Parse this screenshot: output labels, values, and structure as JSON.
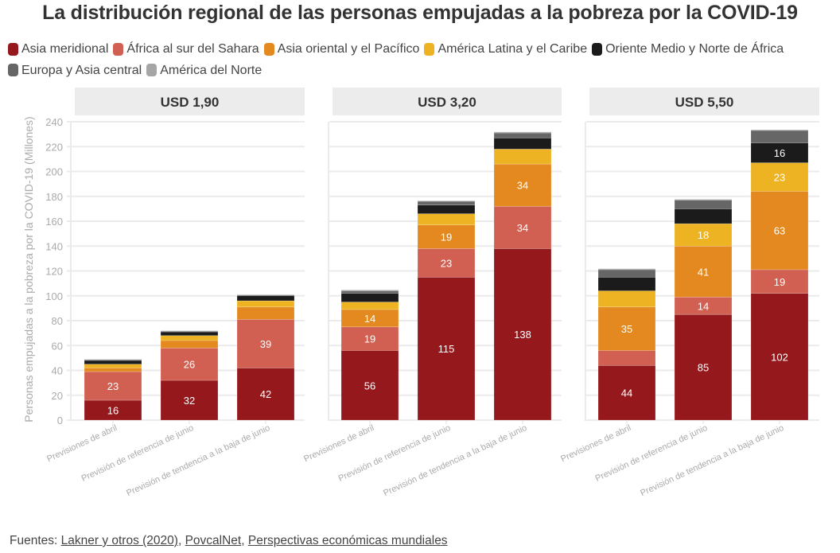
{
  "title": "La distribución regional de las personas empujadas a la pobreza por la COVID-19",
  "footer": {
    "prefix": "Fuentes:",
    "links": [
      "Lakner y otros (2020)",
      "PovcalNet",
      "Perspectivas económicas mundiales"
    ],
    "separator": ","
  },
  "chart_data": {
    "type": "bar",
    "stacked": true,
    "title": "La distribución regional de las personas empujadas a la pobreza por la COVID-19",
    "ylabel": "Personas empujadas a la pobreza por la COVID-19 (Millones)",
    "xlabel": "",
    "ylim": [
      0,
      240
    ],
    "yticks": [
      0,
      20,
      40,
      60,
      80,
      100,
      120,
      140,
      160,
      180,
      200,
      220,
      240
    ],
    "grid": true,
    "legend_position": "top",
    "categories": [
      "Previsiones de abril",
      "Previsión de referencia de junio",
      "Previsión de tendencia a la baja de junio"
    ],
    "series_meta": [
      {
        "name": "Asia meridional",
        "color": "#95191c"
      },
      {
        "name": "África al sur del Sahara",
        "color": "#d26052"
      },
      {
        "name": "Asia oriental y el Pacífico",
        "color": "#e3891f"
      },
      {
        "name": "América Latina y el Caribe",
        "color": "#edb323"
      },
      {
        "name": "Oriente Medio y Norte de África",
        "color": "#1b1b1b"
      },
      {
        "name": "Europa y Asia central",
        "color": "#666666"
      },
      {
        "name": "América del Norte",
        "color": "#a6a6a6"
      }
    ],
    "panels": [
      {
        "title": "USD 1,90",
        "series": [
          {
            "name": "Asia meridional",
            "values": [
              16,
              32,
              42
            ],
            "labels": [
              "16",
              "32",
              "42"
            ]
          },
          {
            "name": "África al sur del Sahara",
            "values": [
              23,
              26,
              39
            ],
            "labels": [
              "23",
              "26",
              "39"
            ]
          },
          {
            "name": "Asia oriental y el Pacífico",
            "values": [
              3,
              6,
              10
            ],
            "labels": [
              "",
              "",
              ""
            ]
          },
          {
            "name": "América Latina y el Caribe",
            "values": [
              3,
              4,
              5
            ],
            "labels": [
              "",
              "",
              ""
            ]
          },
          {
            "name": "Oriente Medio y Norte de África",
            "values": [
              3,
              3,
              4
            ],
            "labels": [
              "",
              "",
              ""
            ]
          },
          {
            "name": "Europa y Asia central",
            "values": [
              0.6,
              0.6,
              0.7
            ],
            "labels": [
              "",
              "",
              ""
            ]
          },
          {
            "name": "América del Norte",
            "values": [
              0.3,
              0.3,
              0.3
            ],
            "labels": [
              "",
              "",
              ""
            ]
          }
        ]
      },
      {
        "title": "USD 3,20",
        "series": [
          {
            "name": "Asia meridional",
            "values": [
              56,
              115,
              138
            ],
            "labels": [
              "56",
              "115",
              "138"
            ]
          },
          {
            "name": "África al sur del Sahara",
            "values": [
              19,
              23,
              34
            ],
            "labels": [
              "19",
              "23",
              "34"
            ]
          },
          {
            "name": "Asia oriental y el Pacífico",
            "values": [
              14,
              19,
              34
            ],
            "labels": [
              "14",
              "19",
              "34"
            ]
          },
          {
            "name": "América Latina y el Caribe",
            "values": [
              6,
              9,
              12
            ],
            "labels": [
              "",
              "",
              ""
            ]
          },
          {
            "name": "Oriente Medio y Norte de África",
            "values": [
              7,
              7,
              9
            ],
            "labels": [
              "",
              "",
              ""
            ]
          },
          {
            "name": "Europa y Asia central",
            "values": [
              2,
              3,
              4
            ],
            "labels": [
              "",
              "",
              ""
            ]
          },
          {
            "name": "América del Norte",
            "values": [
              0.7,
              0.5,
              0.8
            ],
            "labels": [
              "",
              "",
              ""
            ]
          }
        ]
      },
      {
        "title": "USD 5,50",
        "series": [
          {
            "name": "Asia meridional",
            "values": [
              44,
              85,
              102
            ],
            "labels": [
              "44",
              "85",
              "102"
            ]
          },
          {
            "name": "África al sur del Sahara",
            "values": [
              12,
              14,
              19
            ],
            "labels": [
              "",
              "14",
              "19"
            ]
          },
          {
            "name": "Asia oriental y el Pacífico",
            "values": [
              35,
              41,
              63
            ],
            "labels": [
              "35",
              "41",
              "63"
            ]
          },
          {
            "name": "América Latina y el Caribe",
            "values": [
              13,
              18,
              23
            ],
            "labels": [
              "",
              "18",
              "23"
            ]
          },
          {
            "name": "Oriente Medio y Norte de África",
            "values": [
              11,
              12,
              16
            ],
            "labels": [
              "",
              "",
              "16"
            ]
          },
          {
            "name": "Europa y Asia central",
            "values": [
              6,
              7,
              10
            ],
            "labels": [
              "",
              "",
              ""
            ]
          },
          {
            "name": "América del Norte",
            "values": [
              0.8,
              0.6,
              0.6
            ],
            "labels": [
              "",
              "",
              ""
            ]
          }
        ]
      }
    ]
  }
}
